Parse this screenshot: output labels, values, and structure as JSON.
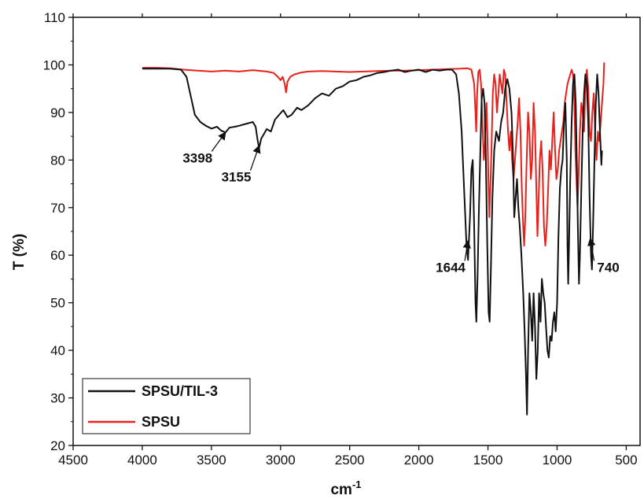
{
  "chart_data": {
    "type": "line",
    "title": "",
    "xlabel": "cm",
    "xlabel_superscript": "-1",
    "ylabel": "T (%)",
    "xlim": [
      4500,
      400
    ],
    "ylim": [
      20,
      110
    ],
    "x_ticks": [
      4500,
      4000,
      3500,
      3000,
      2500,
      2000,
      1500,
      1000,
      500
    ],
    "y_ticks": [
      20,
      30,
      40,
      50,
      60,
      70,
      80,
      90,
      100,
      110
    ],
    "grid": false,
    "legend_position": "bottom-left",
    "series": [
      {
        "name": "SPSU/TIL-3",
        "color": "#111111",
        "points": [
          [
            4000,
            99.2
          ],
          [
            3900,
            99.2
          ],
          [
            3800,
            99.2
          ],
          [
            3720,
            99.0
          ],
          [
            3680,
            97.5
          ],
          [
            3650,
            93.5
          ],
          [
            3620,
            89.5
          ],
          [
            3580,
            88.0
          ],
          [
            3540,
            87.2
          ],
          [
            3500,
            86.6
          ],
          [
            3460,
            87.0
          ],
          [
            3430,
            86.2
          ],
          [
            3398,
            85.8
          ],
          [
            3370,
            86.8
          ],
          [
            3330,
            87.0
          ],
          [
            3300,
            87.2
          ],
          [
            3250,
            87.6
          ],
          [
            3200,
            88.0
          ],
          [
            3180,
            87.0
          ],
          [
            3165,
            84.0
          ],
          [
            3155,
            82.5
          ],
          [
            3140,
            84.5
          ],
          [
            3120,
            85.5
          ],
          [
            3100,
            86.5
          ],
          [
            3070,
            86.0
          ],
          [
            3040,
            88.5
          ],
          [
            3010,
            89.5
          ],
          [
            2980,
            90.5
          ],
          [
            2950,
            89.0
          ],
          [
            2920,
            89.5
          ],
          [
            2880,
            91.0
          ],
          [
            2850,
            90.5
          ],
          [
            2800,
            91.5
          ],
          [
            2750,
            93.0
          ],
          [
            2700,
            94.0
          ],
          [
            2650,
            93.5
          ],
          [
            2600,
            95.0
          ],
          [
            2550,
            95.5
          ],
          [
            2500,
            96.5
          ],
          [
            2450,
            96.8
          ],
          [
            2400,
            97.5
          ],
          [
            2350,
            97.8
          ],
          [
            2300,
            98.3
          ],
          [
            2250,
            98.5
          ],
          [
            2200,
            98.8
          ],
          [
            2150,
            99.0
          ],
          [
            2100,
            98.5
          ],
          [
            2050,
            98.8
          ],
          [
            2000,
            99.0
          ],
          [
            1950,
            98.5
          ],
          [
            1900,
            99.0
          ],
          [
            1850,
            98.8
          ],
          [
            1800,
            99.0
          ],
          [
            1760,
            99.0
          ],
          [
            1730,
            98.0
          ],
          [
            1710,
            94.0
          ],
          [
            1690,
            86.0
          ],
          [
            1670,
            72.0
          ],
          [
            1655,
            62.0
          ],
          [
            1644,
            59.0
          ],
          [
            1630,
            68.0
          ],
          [
            1620,
            78.0
          ],
          [
            1610,
            80.0
          ],
          [
            1600,
            66.0
          ],
          [
            1590,
            50.0
          ],
          [
            1584,
            46.0
          ],
          [
            1575,
            56.0
          ],
          [
            1565,
            70.0
          ],
          [
            1555,
            82.0
          ],
          [
            1545,
            93.0
          ],
          [
            1535,
            95.0
          ],
          [
            1525,
            92.0
          ],
          [
            1515,
            80.0
          ],
          [
            1505,
            62.0
          ],
          [
            1495,
            48.0
          ],
          [
            1488,
            46.0
          ],
          [
            1478,
            58.0
          ],
          [
            1468,
            72.0
          ],
          [
            1455,
            82.0
          ],
          [
            1440,
            86.0
          ],
          [
            1420,
            84.0
          ],
          [
            1405,
            88.0
          ],
          [
            1390,
            90.0
          ],
          [
            1375,
            95.0
          ],
          [
            1360,
            97.0
          ],
          [
            1345,
            95.0
          ],
          [
            1330,
            90.0
          ],
          [
            1320,
            82.0
          ],
          [
            1310,
            68.0
          ],
          [
            1300,
            72.0
          ],
          [
            1290,
            76.0
          ],
          [
            1280,
            70.0
          ],
          [
            1270,
            66.0
          ],
          [
            1258,
            60.0
          ],
          [
            1245,
            52.0
          ],
          [
            1235,
            44.0
          ],
          [
            1225,
            35.0
          ],
          [
            1218,
            26.5
          ],
          [
            1210,
            40.0
          ],
          [
            1200,
            52.0
          ],
          [
            1190,
            48.0
          ],
          [
            1180,
            42.0
          ],
          [
            1170,
            52.0
          ],
          [
            1160,
            45.0
          ],
          [
            1150,
            34.0
          ],
          [
            1140,
            40.0
          ],
          [
            1130,
            52.0
          ],
          [
            1120,
            46.0
          ],
          [
            1110,
            55.0
          ],
          [
            1100,
            52.0
          ],
          [
            1090,
            50.0
          ],
          [
            1080,
            45.0
          ],
          [
            1070,
            40.0
          ],
          [
            1060,
            38.5
          ],
          [
            1050,
            43.0
          ],
          [
            1040,
            42.0
          ],
          [
            1030,
            46.0
          ],
          [
            1020,
            48.0
          ],
          [
            1010,
            44.0
          ],
          [
            1000,
            50.0
          ],
          [
            990,
            64.0
          ],
          [
            980,
            74.0
          ],
          [
            970,
            78.0
          ],
          [
            960,
            80.0
          ],
          [
            950,
            88.0
          ],
          [
            940,
            92.0
          ],
          [
            930,
            80.0
          ],
          [
            925,
            62.0
          ],
          [
            920,
            54.0
          ],
          [
            915,
            60.0
          ],
          [
            905,
            76.0
          ],
          [
            895,
            88.0
          ],
          [
            885,
            96.0
          ],
          [
            875,
            98.0
          ],
          [
            865,
            92.0
          ],
          [
            858,
            80.0
          ],
          [
            850,
            66.0
          ],
          [
            842,
            54.0
          ],
          [
            835,
            60.0
          ],
          [
            825,
            74.0
          ],
          [
            815,
            86.0
          ],
          [
            805,
            94.0
          ],
          [
            795,
            98.0
          ],
          [
            785,
            96.0
          ],
          [
            775,
            88.0
          ],
          [
            765,
            72.0
          ],
          [
            755,
            60.0
          ],
          [
            748,
            57.0
          ],
          [
            740,
            66.0
          ],
          [
            730,
            80.0
          ],
          [
            720,
            92.0
          ],
          [
            710,
            98.0
          ],
          [
            700,
            94.0
          ],
          [
            690,
            86.0
          ],
          [
            680,
            79.0
          ],
          [
            675,
            82.0
          ]
        ]
      },
      {
        "name": "SPSU",
        "color": "#e8201c",
        "points": [
          [
            4000,
            99.4
          ],
          [
            3900,
            99.4
          ],
          [
            3800,
            99.3
          ],
          [
            3700,
            99.0
          ],
          [
            3600,
            98.8
          ],
          [
            3500,
            98.6
          ],
          [
            3400,
            98.8
          ],
          [
            3300,
            98.6
          ],
          [
            3200,
            98.9
          ],
          [
            3100,
            98.6
          ],
          [
            3050,
            98.3
          ],
          [
            3020,
            97.5
          ],
          [
            3000,
            96.8
          ],
          [
            2985,
            97.5
          ],
          [
            2970,
            96.0
          ],
          [
            2960,
            94.2
          ],
          [
            2950,
            96.5
          ],
          [
            2930,
            97.5
          ],
          [
            2900,
            98.0
          ],
          [
            2850,
            98.4
          ],
          [
            2800,
            98.6
          ],
          [
            2700,
            98.7
          ],
          [
            2600,
            98.6
          ],
          [
            2500,
            98.5
          ],
          [
            2400,
            98.6
          ],
          [
            2300,
            98.7
          ],
          [
            2200,
            98.8
          ],
          [
            2100,
            98.8
          ],
          [
            2000,
            98.9
          ],
          [
            1900,
            99.0
          ],
          [
            1800,
            99.1
          ],
          [
            1700,
            99.2
          ],
          [
            1650,
            99.3
          ],
          [
            1620,
            99.0
          ],
          [
            1600,
            96.0
          ],
          [
            1590,
            90.0
          ],
          [
            1585,
            86.0
          ],
          [
            1578,
            94.0
          ],
          [
            1570,
            98.5
          ],
          [
            1560,
            99.0
          ],
          [
            1550,
            96.0
          ],
          [
            1540,
            88.0
          ],
          [
            1530,
            80.0
          ],
          [
            1520,
            84.0
          ],
          [
            1510,
            92.0
          ],
          [
            1500,
            80.0
          ],
          [
            1490,
            68.0
          ],
          [
            1485,
            72.0
          ],
          [
            1475,
            82.0
          ],
          [
            1465,
            94.0
          ],
          [
            1455,
            98.0
          ],
          [
            1445,
            96.0
          ],
          [
            1435,
            90.0
          ],
          [
            1425,
            94.0
          ],
          [
            1415,
            98.0
          ],
          [
            1405,
            96.0
          ],
          [
            1395,
            94.0
          ],
          [
            1385,
            99.0
          ],
          [
            1375,
            98.0
          ],
          [
            1365,
            92.0
          ],
          [
            1355,
            86.0
          ],
          [
            1345,
            82.0
          ],
          [
            1335,
            86.0
          ],
          [
            1325,
            80.0
          ],
          [
            1315,
            76.0
          ],
          [
            1305,
            80.0
          ],
          [
            1295,
            84.0
          ],
          [
            1285,
            88.0
          ],
          [
            1275,
            93.0
          ],
          [
            1265,
            86.0
          ],
          [
            1255,
            74.0
          ],
          [
            1245,
            66.0
          ],
          [
            1238,
            62.0
          ],
          [
            1230,
            68.0
          ],
          [
            1220,
            80.0
          ],
          [
            1210,
            90.0
          ],
          [
            1200,
            86.0
          ],
          [
            1190,
            76.0
          ],
          [
            1180,
            80.0
          ],
          [
            1170,
            92.0
          ],
          [
            1160,
            86.0
          ],
          [
            1150,
            74.0
          ],
          [
            1142,
            64.0
          ],
          [
            1135,
            70.0
          ],
          [
            1125,
            80.0
          ],
          [
            1115,
            84.0
          ],
          [
            1105,
            78.0
          ],
          [
            1095,
            66.0
          ],
          [
            1085,
            62.0
          ],
          [
            1075,
            66.0
          ],
          [
            1065,
            74.0
          ],
          [
            1055,
            82.0
          ],
          [
            1045,
            78.0
          ],
          [
            1035,
            84.0
          ],
          [
            1025,
            90.0
          ],
          [
            1015,
            82.0
          ],
          [
            1005,
            76.0
          ],
          [
            995,
            78.0
          ],
          [
            985,
            82.0
          ],
          [
            975,
            84.0
          ],
          [
            965,
            86.0
          ],
          [
            955,
            88.0
          ],
          [
            945,
            92.0
          ],
          [
            935,
            94.0
          ],
          [
            925,
            96.0
          ],
          [
            915,
            97.0
          ],
          [
            905,
            98.0
          ],
          [
            895,
            99.0
          ],
          [
            885,
            98.0
          ],
          [
            875,
            92.0
          ],
          [
            868,
            82.0
          ],
          [
            860,
            76.0
          ],
          [
            852,
            70.0
          ],
          [
            845,
            76.0
          ],
          [
            835,
            86.0
          ],
          [
            825,
            92.0
          ],
          [
            815,
            90.0
          ],
          [
            805,
            86.0
          ],
          [
            795,
            96.0
          ],
          [
            785,
            99.0
          ],
          [
            775,
            95.0
          ],
          [
            765,
            86.0
          ],
          [
            755,
            84.0
          ],
          [
            745,
            90.0
          ],
          [
            735,
            94.0
          ],
          [
            725,
            86.0
          ],
          [
            715,
            80.0
          ],
          [
            705,
            86.0
          ],
          [
            695,
            84.0
          ],
          [
            685,
            88.0
          ],
          [
            675,
            92.0
          ],
          [
            665,
            96.0
          ],
          [
            660,
            100.5
          ]
        ]
      }
    ],
    "annotations": [
      {
        "label": "3398",
        "x": 3398,
        "y": 85.8,
        "text_x": 3600,
        "text_y": 79.5
      },
      {
        "label": "3155",
        "x": 3155,
        "y": 83.0,
        "text_x": 3320,
        "text_y": 75.5
      },
      {
        "label": "1644",
        "x": 1644,
        "y": 63.0,
        "text_x": 1770,
        "text_y": 56.5
      },
      {
        "label": "740",
        "x": 760,
        "y": 63.5,
        "text_x": 630,
        "text_y": 56.5
      }
    ]
  }
}
